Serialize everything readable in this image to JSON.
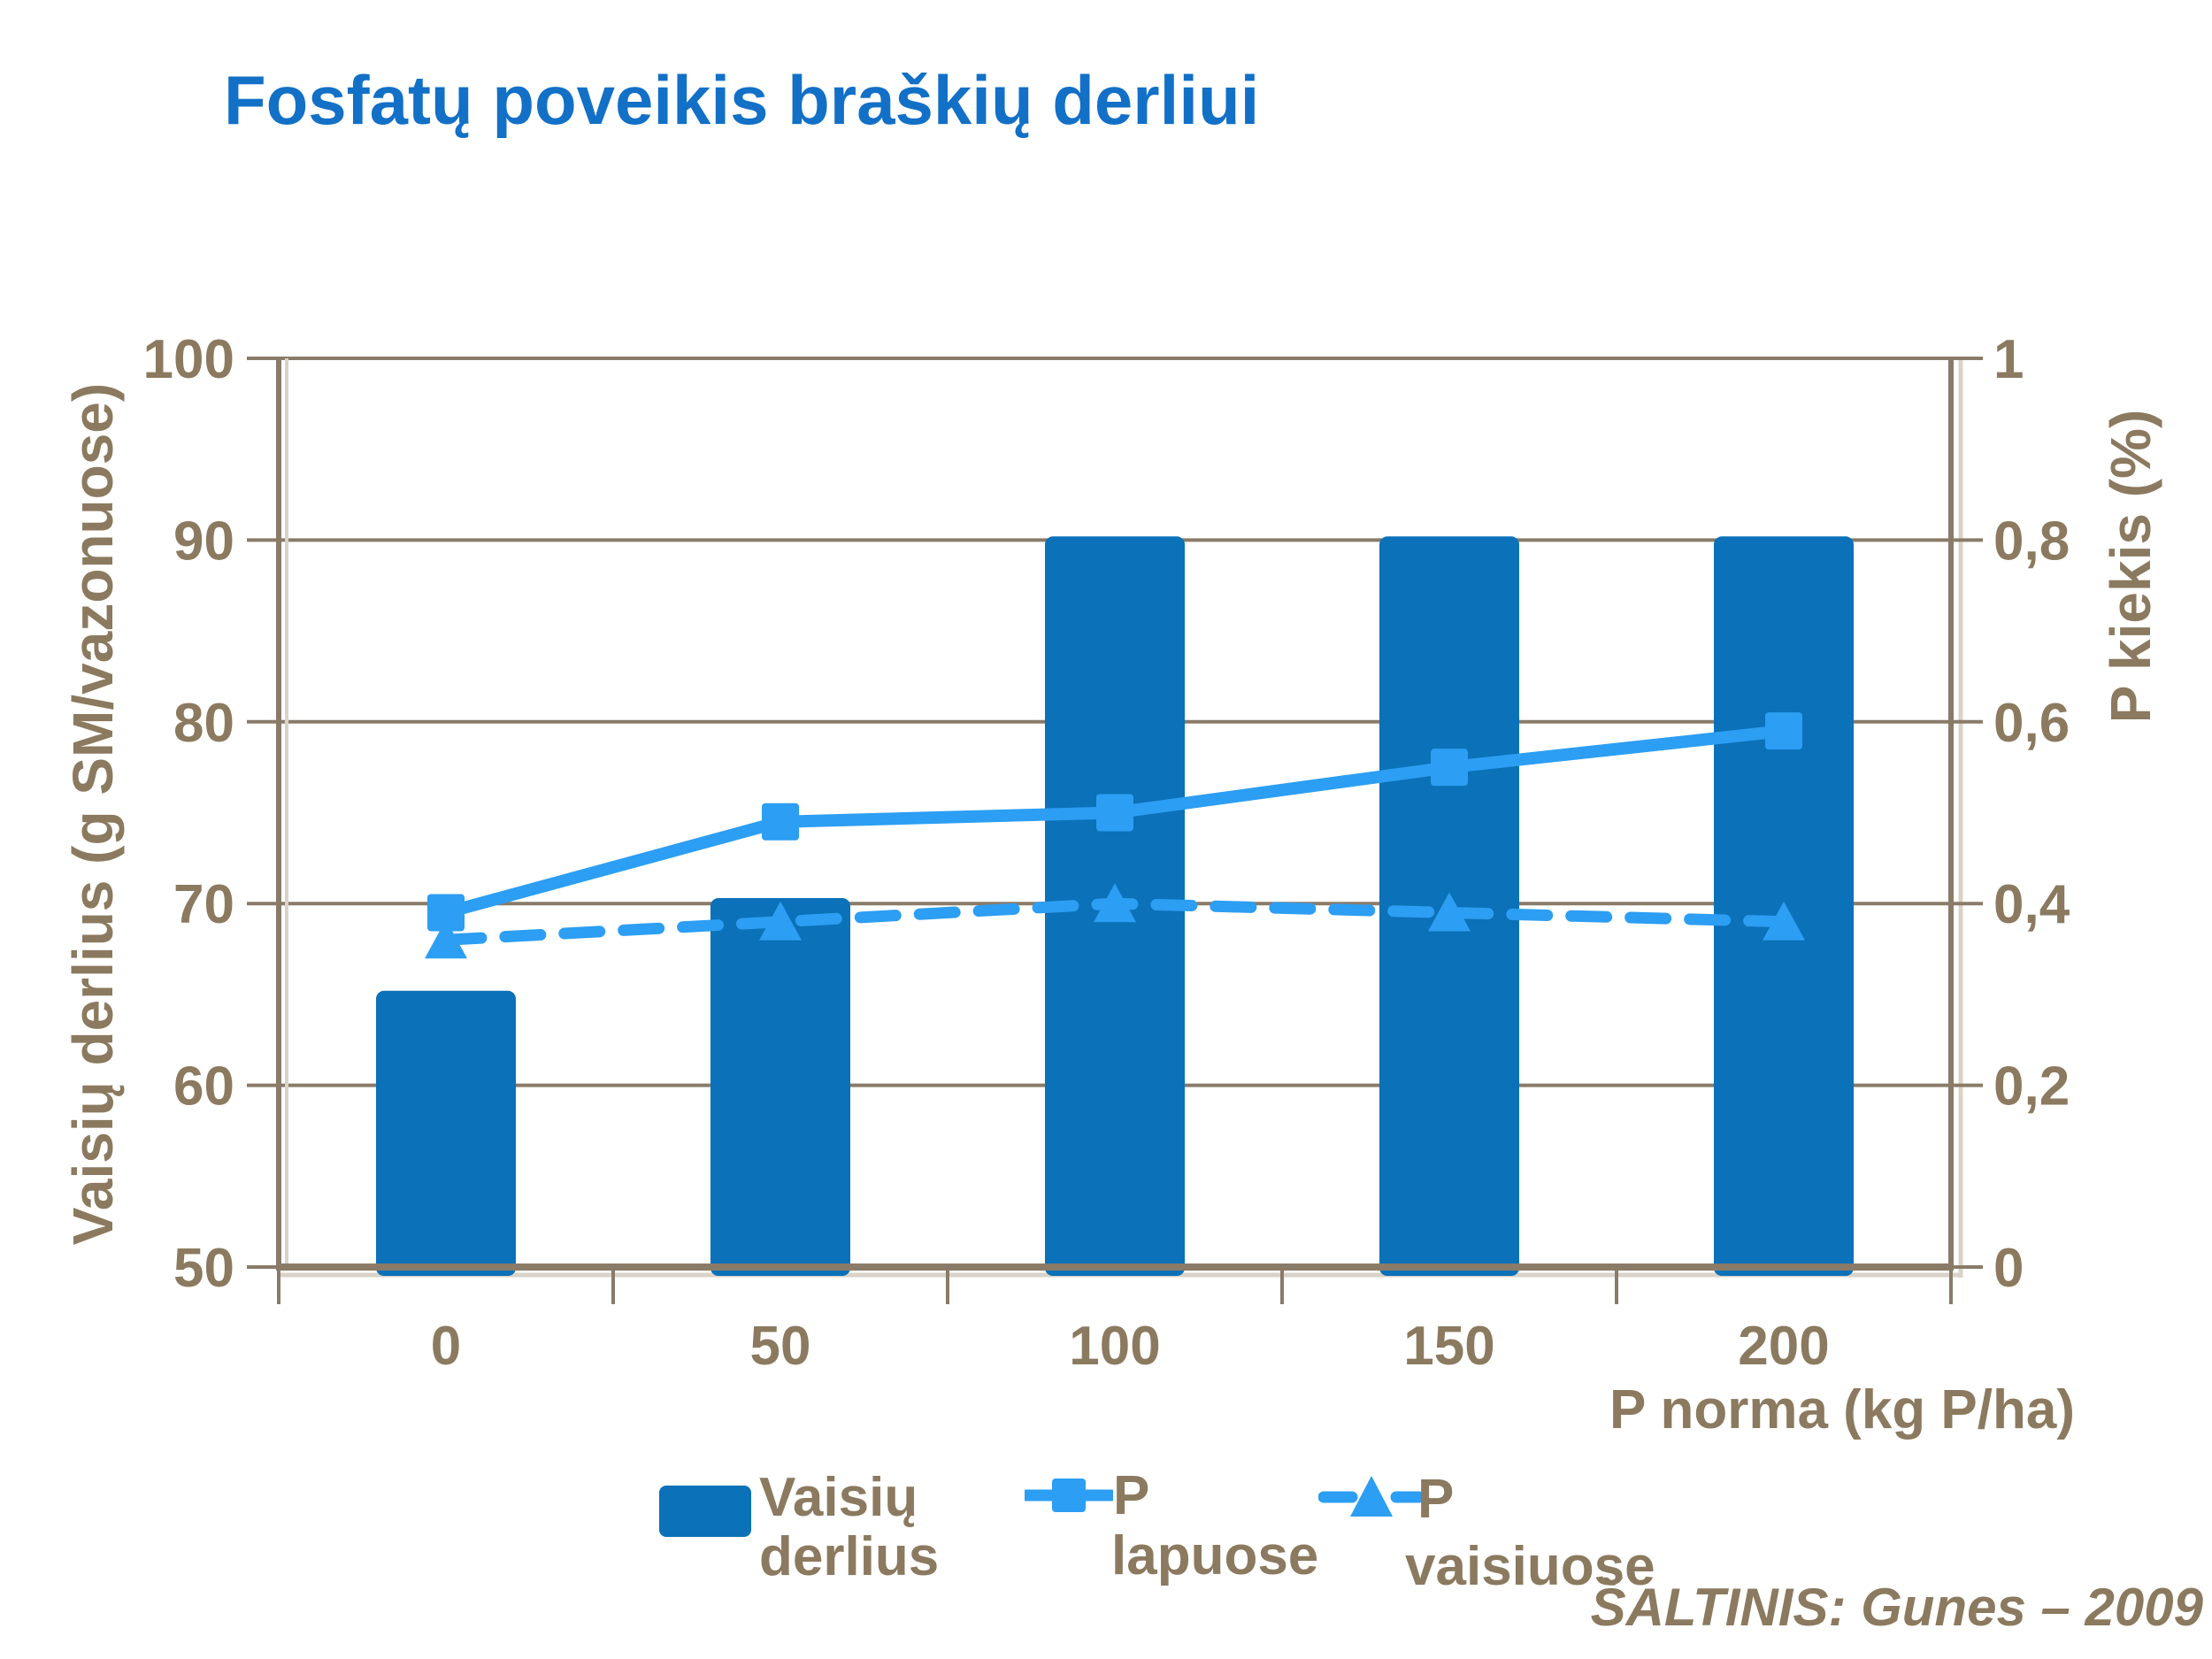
{
  "title": {
    "text": "Fosfatų poveikis braškių derliui"
  },
  "source": "ŠALTINIS: Gunes – 2009",
  "colors": {
    "title_blue": "#1270C7",
    "bar_blue": "#0B71B8",
    "line_blue": "#2C9EF3",
    "text_brown": "#8B7A5F",
    "grid_brown": "#8A7B68",
    "highlight": "#D9D3C9"
  },
  "chart_data": {
    "type": "bar+line",
    "categories": [
      "0",
      "50",
      "100",
      "150",
      "200"
    ],
    "series": [
      {
        "name": "Vaisių derlius",
        "type": "bar",
        "axis": "left",
        "values": [
          65.2,
          70.3,
          90.2,
          90.2,
          90.2
        ]
      },
      {
        "name": "P lapuose",
        "type": "line",
        "style": "solid",
        "marker": "square",
        "axis": "right",
        "values": [
          0.39,
          0.49,
          0.5,
          0.55,
          0.59
        ]
      },
      {
        "name": "P vaisiuose",
        "type": "line",
        "style": "dashed",
        "marker": "triangle",
        "axis": "right",
        "values": [
          0.36,
          0.38,
          0.4,
          0.39,
          0.38
        ]
      }
    ],
    "left_axis": {
      "title": "Vaisių derlius (g SM/vazonuose)",
      "min": 50,
      "max": 100,
      "ticks": [
        "100",
        "90",
        "80",
        "70",
        "60",
        "50"
      ],
      "tick_values": [
        100,
        90,
        80,
        70,
        60,
        50
      ]
    },
    "right_axis": {
      "title": "P kiekis (%)",
      "min": 0,
      "max": 1,
      "ticks": [
        "1",
        "0,8",
        "0,6",
        "0,4",
        "0,2",
        "0"
      ],
      "tick_values": [
        1,
        0.8,
        0.6,
        0.4,
        0.2,
        0
      ]
    },
    "x_axis": {
      "title": "P norma (kg P/ha)"
    },
    "grid": true,
    "legend_position": "bottom"
  },
  "legend": {
    "items": [
      {
        "label_line1": "Vaisių",
        "label_line2": "derlius"
      },
      {
        "label_line1": "P",
        "label_line2": "lapuose"
      },
      {
        "label_line1": "P",
        "label_line2": "vaisiuose"
      }
    ]
  }
}
